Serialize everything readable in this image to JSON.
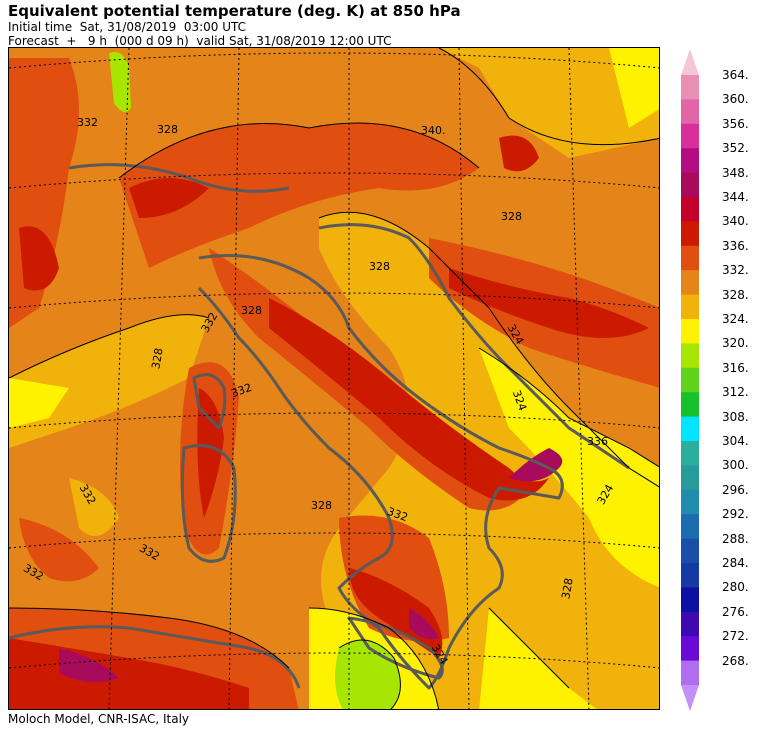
{
  "header": {
    "title": "Equivalent potential temperature (deg. K) at 850 hPa",
    "initial_time": "Initial time  Sat, 31/08/2019  03:00 UTC",
    "forecast": "Forecast  +   9 h  (000 d 09 h)  valid Sat, 31/08/2019 12:00 UTC"
  },
  "footer": {
    "credit": "Moloch Model, CNR-ISAC, Italy"
  },
  "map": {
    "contour_labels": [
      "332",
      "328",
      "340.",
      "328",
      "328",
      "324",
      "328",
      "332",
      "328",
      "324",
      "336",
      "324",
      "332",
      "332",
      "328",
      "332",
      "332",
      "332",
      "324",
      "328"
    ]
  },
  "colorbar": {
    "levels": [
      "364.",
      "360.",
      "356.",
      "352.",
      "348.",
      "344.",
      "340.",
      "336.",
      "332.",
      "328.",
      "324.",
      "320.",
      "316.",
      "312.",
      "308.",
      "304.",
      "300.",
      "296.",
      "292.",
      "288.",
      "284.",
      "280.",
      "276.",
      "272.",
      "268."
    ],
    "colors": [
      "#e98fb4",
      "#e265a7",
      "#d92f9c",
      "#b30d84",
      "#a80a5c",
      "#c4002a",
      "#cc1a00",
      "#e04e10",
      "#e58418",
      "#f1b20b",
      "#fff200",
      "#a7e600",
      "#5fd31a",
      "#15c22c",
      "#00e5ff",
      "#2aaf9e",
      "#279a9c",
      "#1f8bad",
      "#1d6cb0",
      "#1a4ea8",
      "#163aa5",
      "#0e0fa3",
      "#3e09b0",
      "#6b0ad7",
      "#b06df0"
    ],
    "top_cap_color": "#f5c6d6",
    "bottom_cap_color": "#c48ff8"
  }
}
